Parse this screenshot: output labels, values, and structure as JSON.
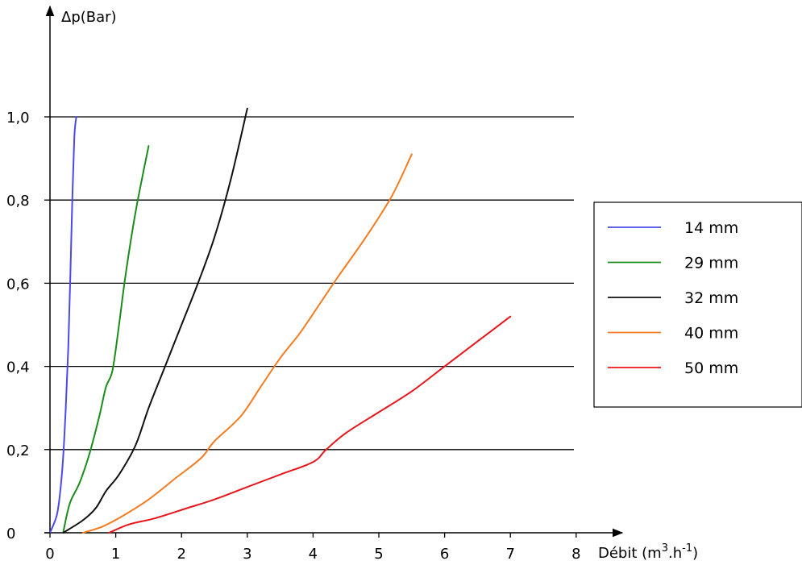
{
  "chart_data": {
    "type": "line",
    "title": "",
    "ylabel": "Δp(Bar)",
    "xlabel_prefix": "Débit (m",
    "xlabel_sup1": "3",
    "xlabel_mid": ".h",
    "xlabel_sup2": "-1",
    "xlabel_suffix": ")",
    "xlim": [
      0,
      8
    ],
    "ylim": [
      0,
      1.0
    ],
    "x_ticks": [
      0,
      1,
      2,
      3,
      4,
      5,
      6,
      7,
      8
    ],
    "x_tick_labels": [
      "0",
      "1",
      "2",
      "3",
      "4",
      "5",
      "6",
      "7",
      "8"
    ],
    "y_ticks": [
      0,
      0.2,
      0.4,
      0.6,
      0.8,
      1.0
    ],
    "y_tick_labels": [
      "0",
      "0,2",
      "0,4",
      "0,6",
      "0,8",
      "1,0"
    ],
    "grid": "horizontal",
    "legend_position": "right",
    "series": [
      {
        "name": "14 mm",
        "color": "#4a4ae8",
        "points": [
          [
            0,
            0
          ],
          [
            0.1,
            0.04
          ],
          [
            0.15,
            0.09
          ],
          [
            0.2,
            0.18
          ],
          [
            0.24,
            0.3
          ],
          [
            0.28,
            0.45
          ],
          [
            0.31,
            0.62
          ],
          [
            0.34,
            0.8
          ],
          [
            0.37,
            0.95
          ],
          [
            0.4,
            1.0
          ]
        ]
      },
      {
        "name": "29 mm",
        "color": "#1a8c1a",
        "points": [
          [
            0.2,
            0.0
          ],
          [
            0.3,
            0.07
          ],
          [
            0.45,
            0.12
          ],
          [
            0.6,
            0.19
          ],
          [
            0.75,
            0.28
          ],
          [
            0.85,
            0.35
          ],
          [
            0.95,
            0.39
          ],
          [
            1.05,
            0.5
          ],
          [
            1.15,
            0.62
          ],
          [
            1.3,
            0.77
          ],
          [
            1.5,
            0.93
          ]
        ]
      },
      {
        "name": "32 mm",
        "color": "#111111",
        "points": [
          [
            0.2,
            0.0
          ],
          [
            0.5,
            0.03
          ],
          [
            0.7,
            0.06
          ],
          [
            0.85,
            0.1
          ],
          [
            1.05,
            0.14
          ],
          [
            1.3,
            0.21
          ],
          [
            1.5,
            0.3
          ],
          [
            1.75,
            0.4
          ],
          [
            2.0,
            0.5
          ],
          [
            2.25,
            0.6
          ],
          [
            2.5,
            0.71
          ],
          [
            2.75,
            0.85
          ],
          [
            3.0,
            1.02
          ]
        ]
      },
      {
        "name": "40 mm",
        "color": "#f37b20",
        "points": [
          [
            0.5,
            0.0
          ],
          [
            0.8,
            0.015
          ],
          [
            1.1,
            0.04
          ],
          [
            1.5,
            0.08
          ],
          [
            1.9,
            0.13
          ],
          [
            2.3,
            0.18
          ],
          [
            2.5,
            0.22
          ],
          [
            2.9,
            0.28
          ],
          [
            3.2,
            0.35
          ],
          [
            3.5,
            0.42
          ],
          [
            3.8,
            0.48
          ],
          [
            4.1,
            0.55
          ],
          [
            4.4,
            0.62
          ],
          [
            4.8,
            0.71
          ],
          [
            5.2,
            0.81
          ],
          [
            5.5,
            0.91
          ]
        ]
      },
      {
        "name": "50 mm",
        "color": "#e8161b",
        "points": [
          [
            0.9,
            0.0
          ],
          [
            1.2,
            0.02
          ],
          [
            1.6,
            0.035
          ],
          [
            2.1,
            0.06
          ],
          [
            2.5,
            0.08
          ],
          [
            3.0,
            0.11
          ],
          [
            3.5,
            0.14
          ],
          [
            4.0,
            0.17
          ],
          [
            4.2,
            0.2
          ],
          [
            4.5,
            0.24
          ],
          [
            5.0,
            0.29
          ],
          [
            5.5,
            0.34
          ],
          [
            6.0,
            0.4
          ],
          [
            6.5,
            0.46
          ],
          [
            7.0,
            0.52
          ]
        ]
      }
    ]
  }
}
